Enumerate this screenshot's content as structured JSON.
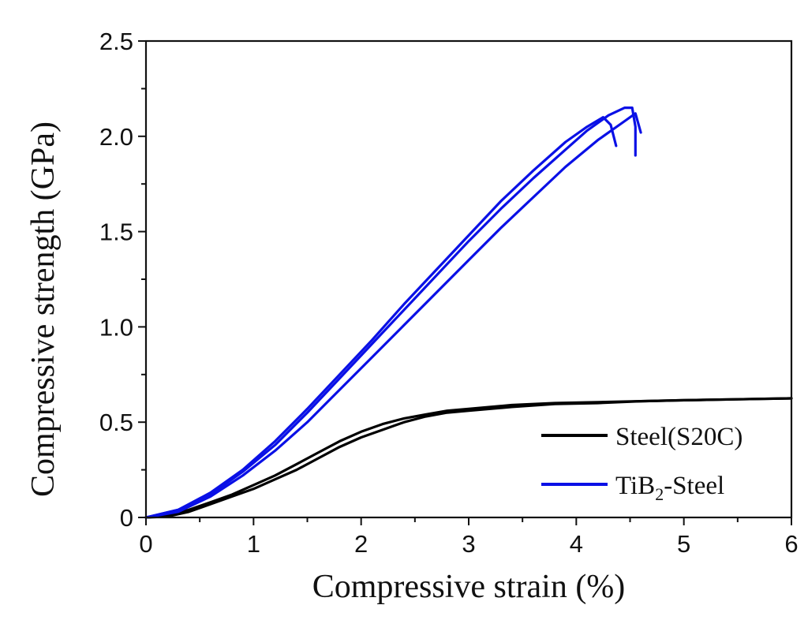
{
  "chart_data": {
    "type": "line",
    "title": "",
    "xlabel": "Compressive strain (%)",
    "ylabel": "Compressive strength (GPa)",
    "xlim": [
      0,
      6
    ],
    "ylim": [
      0,
      2.5
    ],
    "xticks": [
      "0",
      "1",
      "2",
      "3",
      "4",
      "5",
      "6"
    ],
    "yticks": [
      "0",
      "0.5",
      "1.0",
      "1.5",
      "2.0",
      "2.5"
    ],
    "grid": false,
    "legend_position": "bottom-right",
    "legend": [
      {
        "label_main": "Steel(S20C)",
        "label_sub": "",
        "label_tail": "",
        "color": "#000000"
      },
      {
        "label_main": "TiB",
        "label_sub": "2",
        "label_tail": "-Steel",
        "color": "#0a10e6"
      }
    ],
    "series": [
      {
        "name": "Steel(S20C) #1",
        "color": "#000000",
        "x": [
          0,
          0.2,
          0.4,
          0.6,
          0.8,
          1.0,
          1.2,
          1.4,
          1.6,
          1.8,
          2.0,
          2.2,
          2.4,
          2.6,
          2.8,
          3.0,
          3.4,
          3.8,
          4.2,
          4.6,
          5.0,
          5.5,
          6.0
        ],
        "y": [
          0,
          0.01,
          0.04,
          0.08,
          0.12,
          0.17,
          0.22,
          0.28,
          0.34,
          0.4,
          0.45,
          0.49,
          0.52,
          0.54,
          0.56,
          0.57,
          0.59,
          0.6,
          0.605,
          0.61,
          0.615,
          0.62,
          0.625
        ]
      },
      {
        "name": "Steel(S20C) #2",
        "color": "#000000",
        "x": [
          0,
          0.2,
          0.4,
          0.6,
          0.8,
          1.0,
          1.2,
          1.4,
          1.6,
          1.8,
          2.0,
          2.2,
          2.4,
          2.6,
          2.8,
          3.0,
          3.4,
          3.8,
          4.2,
          4.6,
          5.0,
          5.5,
          6.0
        ],
        "y": [
          0,
          0.005,
          0.03,
          0.07,
          0.11,
          0.15,
          0.2,
          0.25,
          0.31,
          0.37,
          0.42,
          0.46,
          0.5,
          0.53,
          0.55,
          0.56,
          0.58,
          0.595,
          0.6,
          0.61,
          0.615,
          0.62,
          0.625
        ]
      },
      {
        "name": "TiB2-Steel #1",
        "color": "#0a10e6",
        "x": [
          0,
          0.3,
          0.6,
          0.9,
          1.2,
          1.5,
          1.8,
          2.1,
          2.4,
          2.7,
          3.0,
          3.3,
          3.6,
          3.9,
          4.1,
          4.25,
          4.32,
          4.37
        ],
        "y": [
          0,
          0.04,
          0.13,
          0.25,
          0.4,
          0.57,
          0.75,
          0.93,
          1.12,
          1.3,
          1.48,
          1.66,
          1.82,
          1.97,
          2.05,
          2.1,
          2.06,
          1.95
        ]
      },
      {
        "name": "TiB2-Steel #2",
        "color": "#0a10e6",
        "x": [
          0,
          0.3,
          0.6,
          0.9,
          1.2,
          1.5,
          1.8,
          2.1,
          2.4,
          2.7,
          3.0,
          3.3,
          3.6,
          3.9,
          4.1,
          4.3,
          4.45,
          4.52,
          4.55,
          4.55
        ],
        "y": [
          0,
          0.04,
          0.12,
          0.24,
          0.38,
          0.55,
          0.73,
          0.91,
          1.09,
          1.27,
          1.45,
          1.62,
          1.78,
          1.93,
          2.03,
          2.11,
          2.15,
          2.15,
          2.05,
          1.9
        ]
      },
      {
        "name": "TiB2-Steel #3",
        "color": "#0a10e6",
        "x": [
          0,
          0.3,
          0.6,
          0.9,
          1.2,
          1.5,
          1.8,
          2.1,
          2.4,
          2.7,
          3.0,
          3.3,
          3.6,
          3.9,
          4.2,
          4.45,
          4.55,
          4.58,
          4.6
        ],
        "y": [
          0,
          0.03,
          0.11,
          0.22,
          0.35,
          0.5,
          0.67,
          0.84,
          1.01,
          1.18,
          1.35,
          1.52,
          1.68,
          1.84,
          1.98,
          2.08,
          2.12,
          2.06,
          2.02
        ]
      }
    ]
  }
}
